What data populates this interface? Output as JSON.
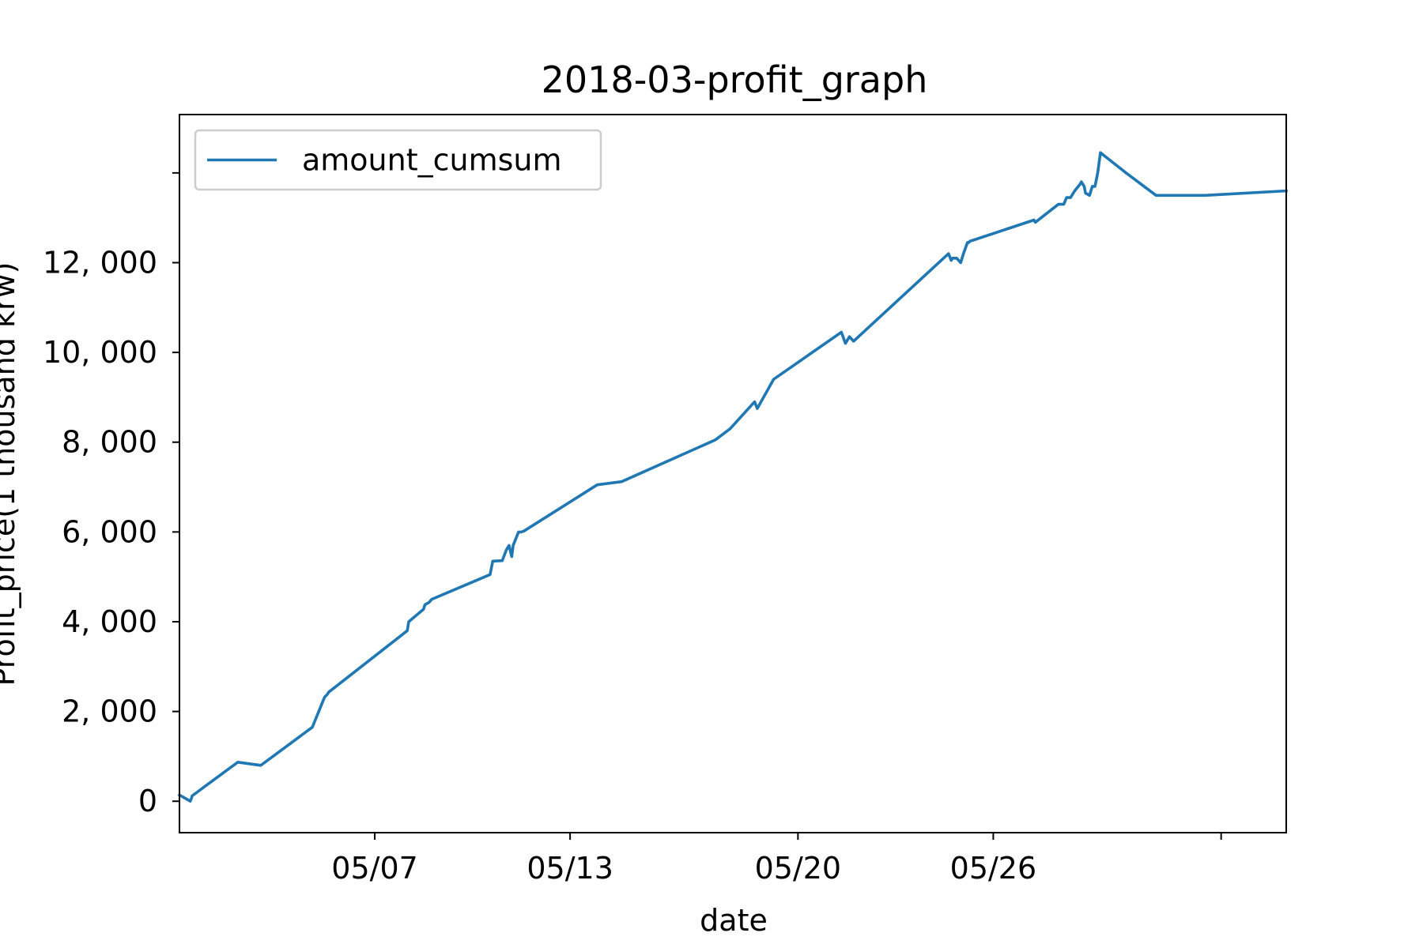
{
  "chart_data": {
    "type": "line",
    "title": "2018-03-profit_graph",
    "xlabel": "date",
    "ylabel": "Profit_price(1 thousand krw)",
    "x_tick_labels": [
      "05/07",
      "05/13",
      "05/20",
      "05/26",
      ""
    ],
    "y_tick_labels": [
      "0",
      "2, 000",
      "4, 000",
      "6, 000",
      "8, 000",
      "10, 000",
      "12, 000",
      ""
    ],
    "x_ticks": [
      "2018-05-07",
      "2018-05-13",
      "2018-05-20",
      "2018-05-26",
      "2018-06-02"
    ],
    "y_ticks": [
      0,
      2000,
      4000,
      6000,
      8000,
      10000,
      12000,
      14000
    ],
    "xlim": [
      "2018-05-01",
      "2018-06-04"
    ],
    "ylim": [
      -700,
      15300
    ],
    "legend": {
      "location": "upper left",
      "entries": [
        "amount_cumsum"
      ]
    },
    "grid": false,
    "colors": {
      "series": "#1f77b4"
    },
    "series": [
      {
        "name": "amount_cumsum",
        "x": [
          "2018-05-01 00:00",
          "2018-05-01 08:00",
          "2018-05-01 09:00",
          "2018-05-01 09:20",
          "2018-05-02 19:00",
          "2018-05-03 12:00",
          "2018-05-05 02:00",
          "2018-05-05 11:00",
          "2018-05-05 13:00",
          "2018-05-05 14:00",
          "2018-05-08 00:00",
          "2018-05-08 01:00",
          "2018-05-08 12:00",
          "2018-05-08 13:00",
          "2018-05-08 16:00",
          "2018-05-08 18:00",
          "2018-05-10 13:00",
          "2018-05-10 15:00",
          "2018-05-10 22:00",
          "2018-05-11 01:00",
          "2018-05-11 03:00",
          "2018-05-11 05:00",
          "2018-05-11 06:00",
          "2018-05-11 08:00",
          "2018-05-11 10:00",
          "2018-05-11 12:00",
          "2018-05-11 14:00",
          "2018-05-13 20:00",
          "2018-05-14 14:00",
          "2018-05-17 11:00",
          "2018-05-17 22:00",
          "2018-05-18 16:00",
          "2018-05-18 18:00",
          "2018-05-19 06:00",
          "2018-05-21 08:00",
          "2018-05-21 11:00",
          "2018-05-21 14:00",
          "2018-05-21 17:00",
          "2018-05-24 15:00",
          "2018-05-24 17:00",
          "2018-05-24 18:00",
          "2018-05-24 21:00",
          "2018-05-25 00:00",
          "2018-05-25 02:00",
          "2018-05-25 05:00",
          "2018-05-25 06:00",
          "2018-05-25 07:00",
          "2018-05-25 09:00",
          "2018-05-27 06:00",
          "2018-05-27 07:00",
          "2018-05-28 00:00",
          "2018-05-28 04:00",
          "2018-05-28 06:00",
          "2018-05-28 09:00",
          "2018-05-28 12:00",
          "2018-05-28 16:00",
          "2018-05-28 17:00",
          "2018-05-28 19:00",
          "2018-05-28 20:00",
          "2018-05-28 23:00",
          "2018-05-29 01:00",
          "2018-05-29 03:00",
          "2018-05-29 05:00",
          "2018-05-29 07:00",
          "2018-05-30 02:00",
          "2018-05-31 00:00",
          "2018-06-01 12:00",
          "2018-06-04 00:00"
        ],
        "y": [
          140,
          0,
          80,
          120,
          870,
          800,
          1650,
          2320,
          2380,
          2430,
          3800,
          4000,
          4280,
          4380,
          4430,
          4500,
          5050,
          5350,
          5360,
          5600,
          5700,
          5450,
          5700,
          5850,
          6000,
          6000,
          6020,
          7050,
          7120,
          8050,
          8300,
          8900,
          8750,
          9400,
          10450,
          10200,
          10350,
          10250,
          12200,
          12050,
          12100,
          12100,
          12000,
          12200,
          12450,
          12450,
          12480,
          12500,
          12950,
          12900,
          13300,
          13300,
          13450,
          13450,
          13600,
          13750,
          13800,
          13700,
          13550,
          13500,
          13700,
          13700,
          14000,
          14450,
          14000,
          13500,
          13500,
          13600
        ]
      }
    ]
  }
}
